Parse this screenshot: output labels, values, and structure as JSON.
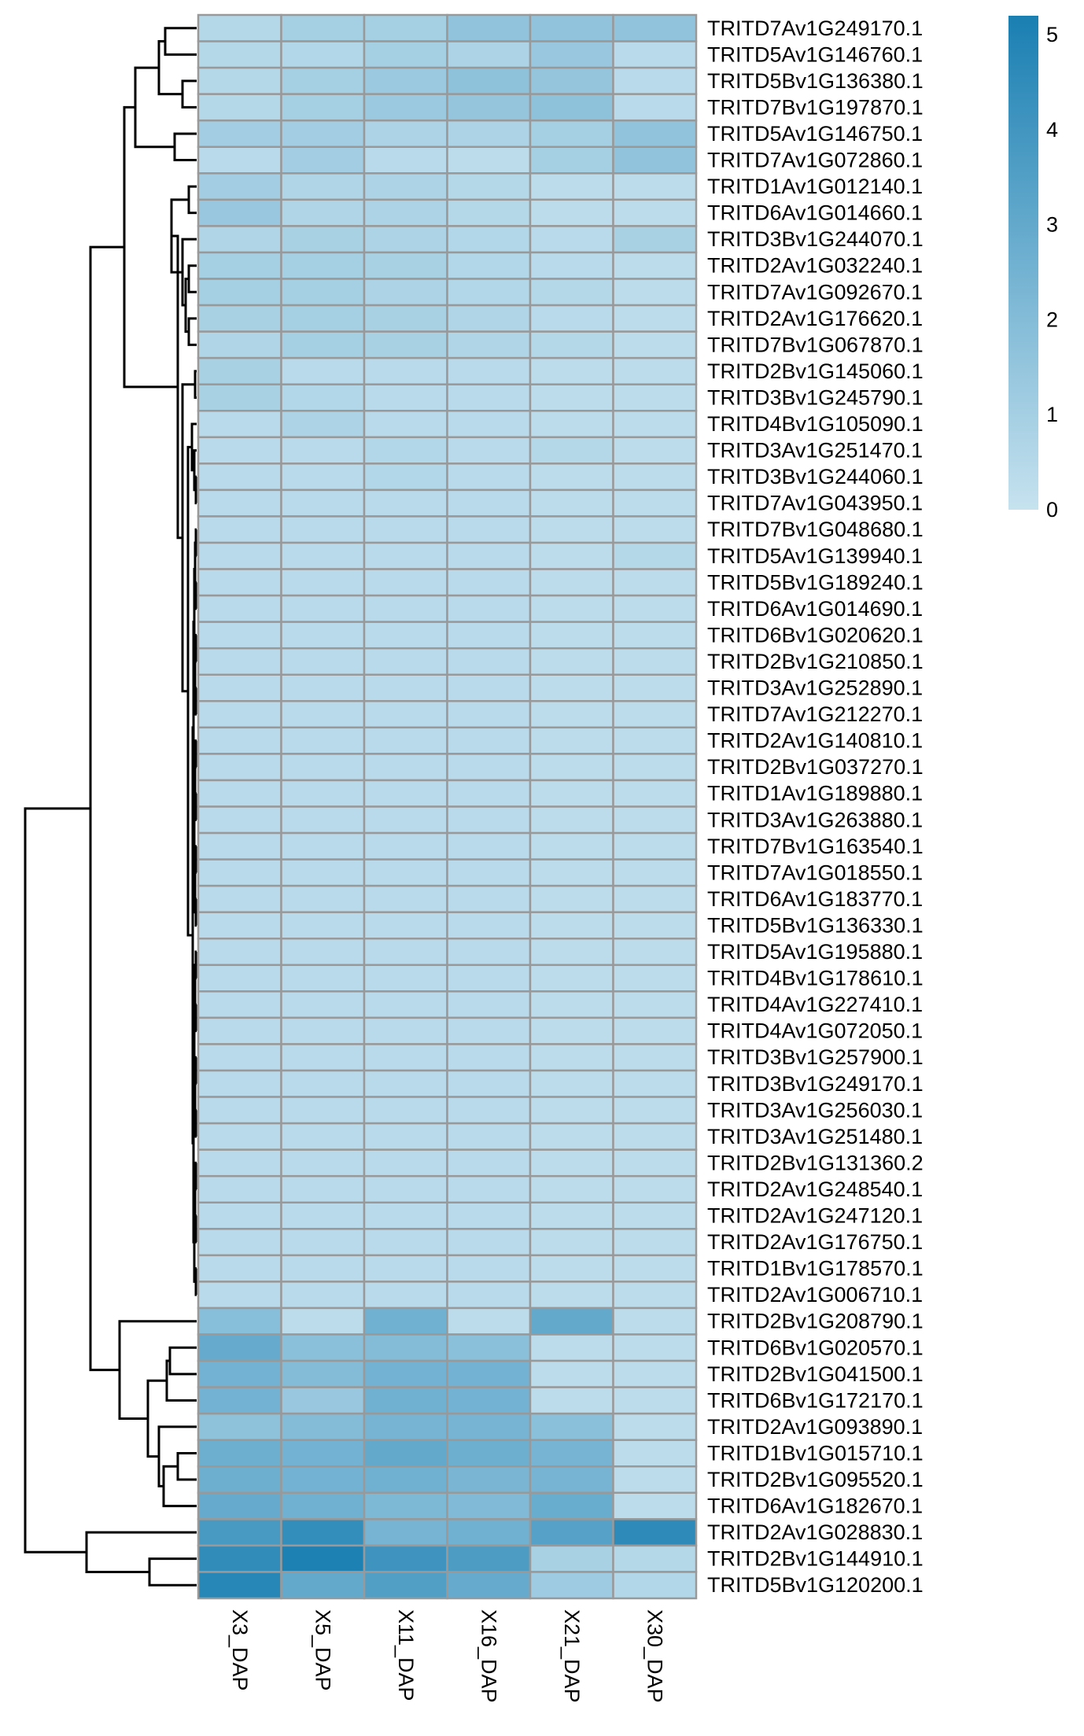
{
  "chart_data": {
    "type": "heatmap",
    "title": "",
    "xlabel": "",
    "ylabel": "",
    "columns": [
      "X3_DAP",
      "X5_DAP",
      "X11_DAP",
      "X16_DAP",
      "X21_DAP",
      "X30_DAP"
    ],
    "rows": [
      "TRITD7Av1G249170.1",
      "TRITD5Av1G146760.1",
      "TRITD5Bv1G136380.1",
      "TRITD7Bv1G197870.1",
      "TRITD5Av1G146750.1",
      "TRITD7Av1G072860.1",
      "TRITD1Av1G012140.1",
      "TRITD6Av1G014660.1",
      "TRITD3Bv1G244070.1",
      "TRITD2Av1G032240.1",
      "TRITD7Av1G092670.1",
      "TRITD2Av1G176620.1",
      "TRITD7Bv1G067870.1",
      "TRITD2Bv1G145060.1",
      "TRITD3Bv1G245790.1",
      "TRITD4Bv1G105090.1",
      "TRITD3Av1G251470.1",
      "TRITD3Bv1G244060.1",
      "TRITD7Av1G043950.1",
      "TRITD7Bv1G048680.1",
      "TRITD5Av1G139940.1",
      "TRITD5Bv1G189240.1",
      "TRITD6Av1G014690.1",
      "TRITD6Bv1G020620.1",
      "TRITD2Bv1G210850.1",
      "TRITD3Av1G252890.1",
      "TRITD7Av1G212270.1",
      "TRITD2Av1G140810.1",
      "TRITD2Bv1G037270.1",
      "TRITD1Av1G189880.1",
      "TRITD3Av1G263880.1",
      "TRITD7Bv1G163540.1",
      "TRITD7Av1G018550.1",
      "TRITD6Av1G183770.1",
      "TRITD5Bv1G136330.1",
      "TRITD5Av1G195880.1",
      "TRITD4Bv1G178610.1",
      "TRITD4Av1G227410.1",
      "TRITD4Av1G072050.1",
      "TRITD3Bv1G257900.1",
      "TRITD3Bv1G249170.1",
      "TRITD3Av1G256030.1",
      "TRITD3Av1G251480.1",
      "TRITD2Bv1G131360.2",
      "TRITD2Av1G248540.1",
      "TRITD2Av1G247120.1",
      "TRITD2Av1G176750.1",
      "TRITD1Bv1G178570.1",
      "TRITD2Av1G006710.1",
      "TRITD2Bv1G208790.1",
      "TRITD6Bv1G020570.1",
      "TRITD2Bv1G041500.1",
      "TRITD6Bv1G172170.1",
      "TRITD2Av1G093890.1",
      "TRITD1Bv1G015710.1",
      "TRITD2Bv1G095520.1",
      "TRITD6Av1G182670.1",
      "TRITD2Av1G028830.1",
      "TRITD2Bv1G144910.1",
      "TRITD5Bv1G120200.1"
    ],
    "values": [
      [
        0.5,
        1.0,
        1.0,
        1.6,
        1.6,
        1.6
      ],
      [
        0.5,
        0.6,
        1.0,
        0.8,
        1.4,
        0.4
      ],
      [
        0.5,
        1.0,
        1.3,
        1.7,
        1.5,
        0.4
      ],
      [
        0.5,
        1.0,
        1.3,
        1.5,
        1.7,
        0.4
      ],
      [
        1.1,
        1.1,
        0.8,
        0.8,
        1.0,
        1.6
      ],
      [
        0.4,
        1.1,
        0.4,
        0.3,
        1.0,
        1.6
      ],
      [
        1.1,
        0.7,
        0.8,
        0.5,
        0.3,
        0.3
      ],
      [
        1.4,
        0.7,
        0.8,
        0.5,
        0.3,
        0.3
      ],
      [
        0.7,
        0.9,
        0.8,
        0.6,
        0.4,
        0.9
      ],
      [
        1.0,
        1.0,
        0.9,
        0.6,
        0.4,
        0.3
      ],
      [
        1.0,
        1.0,
        0.8,
        0.6,
        0.5,
        0.3
      ],
      [
        0.9,
        1.0,
        0.9,
        0.7,
        0.4,
        0.3
      ],
      [
        0.7,
        1.0,
        0.9,
        0.7,
        0.5,
        0.3
      ],
      [
        0.9,
        0.4,
        0.4,
        0.4,
        0.3,
        0.3
      ],
      [
        0.9,
        0.6,
        0.4,
        0.4,
        0.3,
        0.3
      ],
      [
        0.4,
        0.8,
        0.4,
        0.4,
        0.3,
        0.3
      ],
      [
        0.4,
        0.4,
        0.6,
        0.4,
        0.5,
        0.3
      ],
      [
        0.4,
        0.4,
        0.6,
        0.4,
        0.3,
        0.3
      ],
      [
        0.4,
        0.4,
        0.4,
        0.4,
        0.3,
        0.3
      ],
      [
        0.4,
        0.4,
        0.4,
        0.4,
        0.3,
        0.3
      ],
      [
        0.4,
        0.4,
        0.4,
        0.4,
        0.3,
        0.5
      ],
      [
        0.4,
        0.4,
        0.4,
        0.4,
        0.3,
        0.3
      ],
      [
        0.4,
        0.4,
        0.4,
        0.4,
        0.3,
        0.3
      ],
      [
        0.4,
        0.4,
        0.4,
        0.4,
        0.3,
        0.3
      ],
      [
        0.4,
        0.4,
        0.4,
        0.4,
        0.3,
        0.3
      ],
      [
        0.4,
        0.4,
        0.4,
        0.4,
        0.3,
        0.3
      ],
      [
        0.4,
        0.4,
        0.4,
        0.4,
        0.3,
        0.3
      ],
      [
        0.4,
        0.4,
        0.4,
        0.4,
        0.3,
        0.3
      ],
      [
        0.4,
        0.4,
        0.4,
        0.4,
        0.3,
        0.3
      ],
      [
        0.4,
        0.4,
        0.4,
        0.4,
        0.3,
        0.3
      ],
      [
        0.4,
        0.4,
        0.4,
        0.4,
        0.3,
        0.3
      ],
      [
        0.4,
        0.4,
        0.4,
        0.4,
        0.3,
        0.3
      ],
      [
        0.4,
        0.4,
        0.4,
        0.4,
        0.3,
        0.3
      ],
      [
        0.4,
        0.4,
        0.4,
        0.4,
        0.3,
        0.3
      ],
      [
        0.4,
        0.4,
        0.4,
        0.4,
        0.3,
        0.3
      ],
      [
        0.4,
        0.4,
        0.4,
        0.4,
        0.3,
        0.3
      ],
      [
        0.4,
        0.4,
        0.4,
        0.4,
        0.3,
        0.3
      ],
      [
        0.4,
        0.4,
        0.4,
        0.4,
        0.3,
        0.3
      ],
      [
        0.4,
        0.4,
        0.4,
        0.4,
        0.3,
        0.3
      ],
      [
        0.4,
        0.4,
        0.4,
        0.4,
        0.3,
        0.3
      ],
      [
        0.4,
        0.4,
        0.4,
        0.4,
        0.3,
        0.3
      ],
      [
        0.4,
        0.4,
        0.4,
        0.4,
        0.3,
        0.3
      ],
      [
        0.4,
        0.4,
        0.4,
        0.4,
        0.3,
        0.3
      ],
      [
        0.4,
        0.4,
        0.4,
        0.4,
        0.3,
        0.3
      ],
      [
        0.4,
        0.4,
        0.4,
        0.4,
        0.3,
        0.3
      ],
      [
        0.4,
        0.4,
        0.4,
        0.4,
        0.3,
        0.3
      ],
      [
        0.4,
        0.4,
        0.4,
        0.4,
        0.3,
        0.3
      ],
      [
        0.4,
        0.4,
        0.4,
        0.4,
        0.3,
        0.3
      ],
      [
        0.4,
        0.4,
        0.4,
        0.4,
        0.3,
        0.3
      ],
      [
        1.9,
        0.3,
        2.6,
        0.3,
        3.0,
        0.3
      ],
      [
        2.9,
        1.8,
        2.0,
        1.8,
        0.3,
        0.3
      ],
      [
        2.5,
        2.0,
        2.5,
        2.5,
        0.3,
        0.3
      ],
      [
        2.5,
        1.4,
        2.6,
        2.5,
        0.3,
        0.3
      ],
      [
        1.7,
        2.0,
        2.4,
        2.4,
        1.8,
        0.3
      ],
      [
        2.7,
        2.5,
        3.0,
        2.7,
        2.4,
        0.3
      ],
      [
        2.7,
        2.5,
        2.6,
        2.3,
        2.4,
        0.3
      ],
      [
        2.9,
        2.6,
        2.2,
        2.1,
        2.8,
        0.3
      ],
      [
        3.8,
        4.4,
        2.4,
        2.6,
        3.4,
        4.6
      ],
      [
        4.5,
        5.1,
        4.1,
        3.7,
        0.9,
        0.5
      ],
      [
        4.8,
        3.0,
        3.5,
        2.9,
        1.2,
        0.6
      ]
    ],
    "color_scale": {
      "min": 0,
      "max": 5.2,
      "low_color": "#c6e2ef",
      "high_color": "#1a7fb2",
      "ticks": [
        "0",
        "1",
        "2",
        "3",
        "4",
        "5"
      ]
    },
    "cell_border_color": "#999999",
    "legend_position": "top-right",
    "row_dendrogram": true,
    "grid": false
  }
}
